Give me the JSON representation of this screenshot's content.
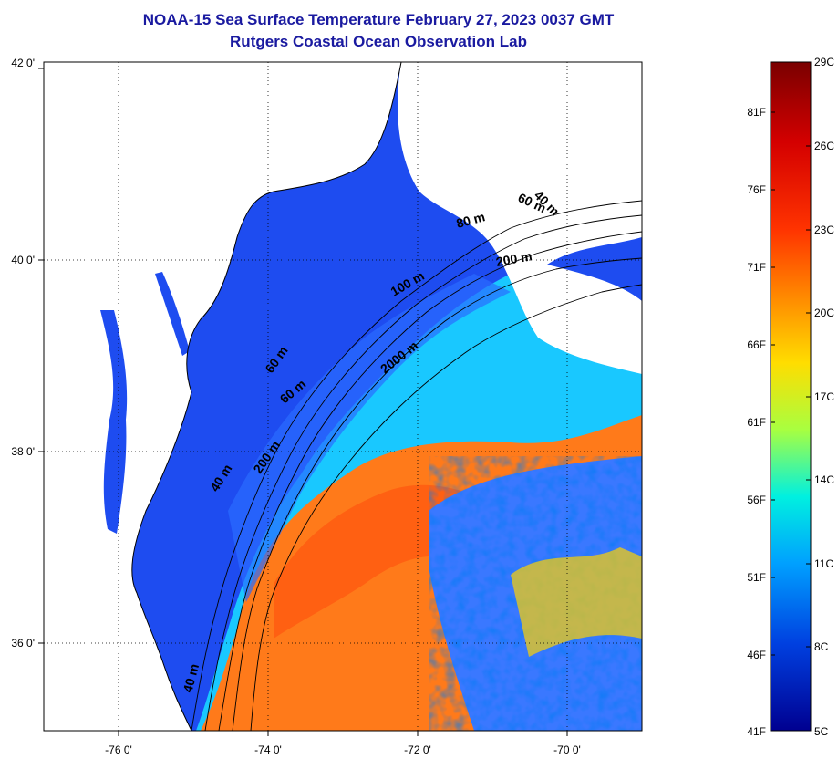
{
  "title": "NOAA-15 Sea Surface Temperature February 27, 2023 0037 GMT",
  "subtitle": "Rutgers Coastal Ocean Observation Lab",
  "lat_labels": [
    "42 0'",
    "40 0'",
    "38 0'",
    "36 0'"
  ],
  "lon_labels": [
    "-76 0'",
    "-74 0'",
    "-72 0'",
    "-70 0'"
  ],
  "contour_labels": [
    "40 m",
    "60 m",
    "80 m",
    "200 m",
    "100 m",
    "60 m",
    "2000 m",
    "40 m",
    "200 m",
    "60 m",
    "40 m"
  ],
  "colorbar": {
    "fahrenheit": [
      "81F",
      "76F",
      "71F",
      "66F",
      "61F",
      "56F",
      "51F",
      "46F",
      "41F"
    ],
    "celsius": [
      "29C",
      "26C",
      "23C",
      "20C",
      "17C",
      "14C",
      "11C",
      "8C",
      "5C"
    ],
    "colors": [
      "#7a0000",
      "#d40000",
      "#ff3300",
      "#ff8800",
      "#ffdd00",
      "#a8ff40",
      "#00f0e0",
      "#00a0ff",
      "#0040e0",
      "#000090"
    ]
  },
  "legend_colors": {
    "cold_shelf": "#1a3fe8",
    "slope": "#19a8ff",
    "gulf_stream": "#ff7a1a",
    "land": "#ffffff"
  }
}
